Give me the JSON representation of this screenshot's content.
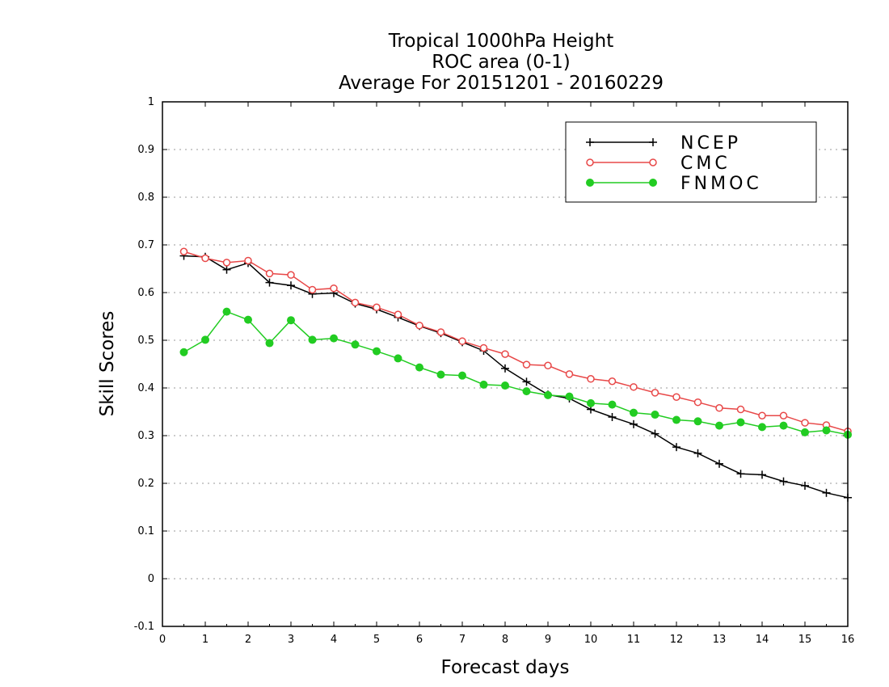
{
  "chart_data": {
    "type": "line",
    "title": [
      "Tropical 1000hPa Height",
      "ROC area (0-1)",
      "Average For 20151201 - 20160229"
    ],
    "xlabel": "Forecast days",
    "ylabel": "Skill Scores",
    "xlim": [
      0,
      16
    ],
    "ylim": [
      -0.1,
      1
    ],
    "xticks": [
      "0",
      "1",
      "2",
      "3",
      "4",
      "5",
      "6",
      "7",
      "8",
      "9",
      "10",
      "11",
      "12",
      "13",
      "14",
      "15",
      "16"
    ],
    "yticks": [
      "-0.1",
      "0",
      "0.1",
      "0.2",
      "0.3",
      "0.4",
      "0.5",
      "0.6",
      "0.7",
      "0.8",
      "0.9",
      "1"
    ],
    "grid": true,
    "legend_position": "top-right",
    "x": [
      0.5,
      1,
      1.5,
      2,
      2.5,
      3,
      3.5,
      4,
      4.5,
      5,
      5.5,
      6,
      6.5,
      7,
      7.5,
      8,
      8.5,
      9,
      9.5,
      10,
      10.5,
      11,
      11.5,
      12,
      12.5,
      13,
      13.5,
      14,
      14.5,
      15,
      15.5,
      16
    ],
    "series": [
      {
        "name": "NCEP",
        "color": "#000000",
        "marker": "plus",
        "values": [
          0.677,
          0.675,
          0.648,
          0.662,
          0.621,
          0.615,
          0.597,
          0.599,
          0.577,
          0.565,
          0.548,
          0.53,
          0.515,
          0.496,
          0.478,
          0.441,
          0.413,
          0.386,
          0.378,
          0.355,
          0.339,
          0.324,
          0.304,
          0.276,
          0.263,
          0.241,
          0.22,
          0.218,
          0.204,
          0.195,
          0.18,
          0.17
        ]
      },
      {
        "name": "CMC",
        "color": "#e84848",
        "marker": "open-circle",
        "values": [
          0.686,
          0.672,
          0.663,
          0.667,
          0.64,
          0.637,
          0.606,
          0.609,
          0.579,
          0.569,
          0.554,
          0.531,
          0.517,
          0.498,
          0.484,
          0.471,
          0.449,
          0.447,
          0.429,
          0.419,
          0.414,
          0.402,
          0.39,
          0.381,
          0.37,
          0.358,
          0.355,
          0.342,
          0.342,
          0.327,
          0.322,
          0.309
        ]
      },
      {
        "name": "FNMOC",
        "color": "#22cc22",
        "marker": "filled-circle",
        "values": [
          0.475,
          0.501,
          0.56,
          0.543,
          0.494,
          0.542,
          0.501,
          0.504,
          0.491,
          0.477,
          0.462,
          0.443,
          0.428,
          0.426,
          0.407,
          0.405,
          0.393,
          0.385,
          0.382,
          0.368,
          0.365,
          0.348,
          0.344,
          0.333,
          0.33,
          0.321,
          0.328,
          0.318,
          0.321,
          0.307,
          0.311,
          0.302
        ]
      }
    ]
  }
}
